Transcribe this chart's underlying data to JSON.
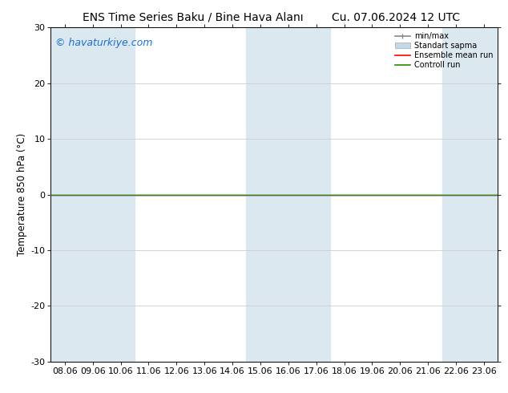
{
  "title_left": "ENS Time Series Baku / Bine Hava Alanı",
  "title_right": "Cu. 07.06.2024 12 UTC",
  "ylabel": "Temperature 850 hPa (°C)",
  "watermark": "© havaturkiye.com",
  "ylim": [
    -30,
    30
  ],
  "yticks": [
    -30,
    -20,
    -10,
    0,
    10,
    20,
    30
  ],
  "xtick_labels": [
    "08.06",
    "09.06",
    "10.06",
    "11.06",
    "12.06",
    "13.06",
    "14.06",
    "15.06",
    "16.06",
    "17.06",
    "18.06",
    "19.06",
    "20.06",
    "21.06",
    "22.06",
    "23.06"
  ],
  "n_xticks": 16,
  "shaded_indices": [
    0,
    1,
    2,
    7,
    8,
    9,
    14,
    15
  ],
  "flat_line_color": "#2e8b00",
  "ensemble_mean_color": "#ff0000",
  "min_max_color": "#888888",
  "std_color": "#c5d8e8",
  "bg_color": "#ffffff",
  "shade_color": "#dce8f0",
  "legend_labels": [
    "min/max",
    "Standart sapma",
    "Ensemble mean run",
    "Controll run"
  ],
  "title_fontsize": 10,
  "tick_fontsize": 8,
  "ylabel_fontsize": 8.5,
  "watermark_fontsize": 9,
  "watermark_color": "#1a6fd4"
}
